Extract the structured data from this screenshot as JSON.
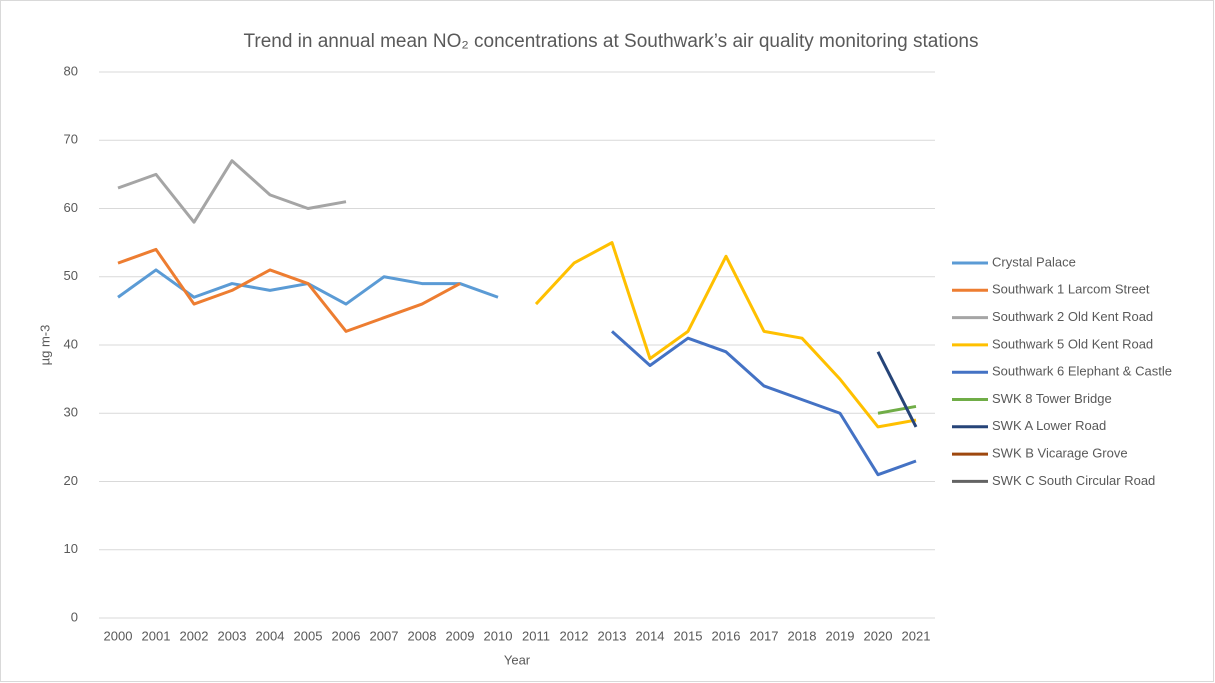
{
  "chart_data": {
    "type": "line",
    "title": "Trend in annual mean NO₂ concentrations at Southwark’s air quality monitoring stations",
    "xlabel": "Year",
    "ylabel": "µg m-3",
    "categories": [
      "2000",
      "2001",
      "2002",
      "2003",
      "2004",
      "2005",
      "2006",
      "2007",
      "2008",
      "2009",
      "2010",
      "2011",
      "2012",
      "2013",
      "2014",
      "2015",
      "2016",
      "2017",
      "2018",
      "2019",
      "2020",
      "2021"
    ],
    "series": [
      {
        "name": "Crystal Palace",
        "color": "#5b9bd5",
        "values": [
          47,
          51,
          47,
          49,
          48,
          49,
          46,
          50,
          49,
          49,
          47,
          null,
          null,
          null,
          null,
          null,
          null,
          null,
          null,
          null,
          null,
          null
        ]
      },
      {
        "name": "Southwark 1 Larcom Street",
        "color": "#ed7d31",
        "values": [
          52,
          54,
          46,
          48,
          51,
          49,
          42,
          44,
          46,
          49,
          null,
          null,
          null,
          null,
          null,
          null,
          null,
          null,
          null,
          null,
          null,
          null
        ]
      },
      {
        "name": "Southwark 2 Old Kent Road",
        "color": "#a5a5a5",
        "values": [
          63,
          65,
          58,
          67,
          62,
          60,
          61,
          null,
          null,
          null,
          null,
          null,
          null,
          null,
          null,
          null,
          null,
          null,
          null,
          null,
          null,
          null
        ]
      },
      {
        "name": "Southwark 5 Old Kent Road",
        "color": "#ffc000",
        "values": [
          null,
          null,
          null,
          null,
          null,
          null,
          null,
          null,
          null,
          null,
          null,
          46,
          52,
          55,
          38,
          42,
          53,
          42,
          41,
          35,
          28,
          29
        ]
      },
      {
        "name": "Southwark 6 Elephant & Castle",
        "color": "#4472c4",
        "values": [
          null,
          null,
          null,
          null,
          null,
          null,
          null,
          null,
          null,
          null,
          null,
          null,
          null,
          42,
          37,
          41,
          39,
          34,
          32,
          30,
          21,
          23
        ]
      },
      {
        "name": "SWK 8 Tower Bridge",
        "color": "#70ad47",
        "values": [
          null,
          null,
          null,
          null,
          null,
          null,
          null,
          null,
          null,
          null,
          null,
          null,
          null,
          null,
          null,
          null,
          null,
          null,
          null,
          null,
          30,
          31
        ]
      },
      {
        "name": "SWK A Lower Road",
        "color": "#264478",
        "values": [
          null,
          null,
          null,
          null,
          null,
          null,
          null,
          null,
          null,
          null,
          null,
          null,
          null,
          null,
          null,
          null,
          null,
          null,
          null,
          null,
          39,
          28
        ]
      },
      {
        "name": "SWK B Vicarage Grove",
        "color": "#9e480e",
        "values": [
          null,
          null,
          null,
          null,
          null,
          null,
          null,
          null,
          null,
          null,
          null,
          null,
          null,
          null,
          null,
          null,
          null,
          null,
          null,
          null,
          null,
          null
        ]
      },
      {
        "name": "SWK C South Circular Road",
        "color": "#636363",
        "values": [
          null,
          null,
          null,
          null,
          null,
          null,
          null,
          null,
          null,
          null,
          null,
          null,
          null,
          null,
          null,
          null,
          null,
          null,
          null,
          null,
          null,
          null
        ]
      }
    ],
    "ylim": [
      0,
      80
    ],
    "yticks": [
      0,
      10,
      20,
      30,
      40,
      50,
      60,
      70,
      80
    ],
    "grid": true,
    "legend": "right"
  }
}
